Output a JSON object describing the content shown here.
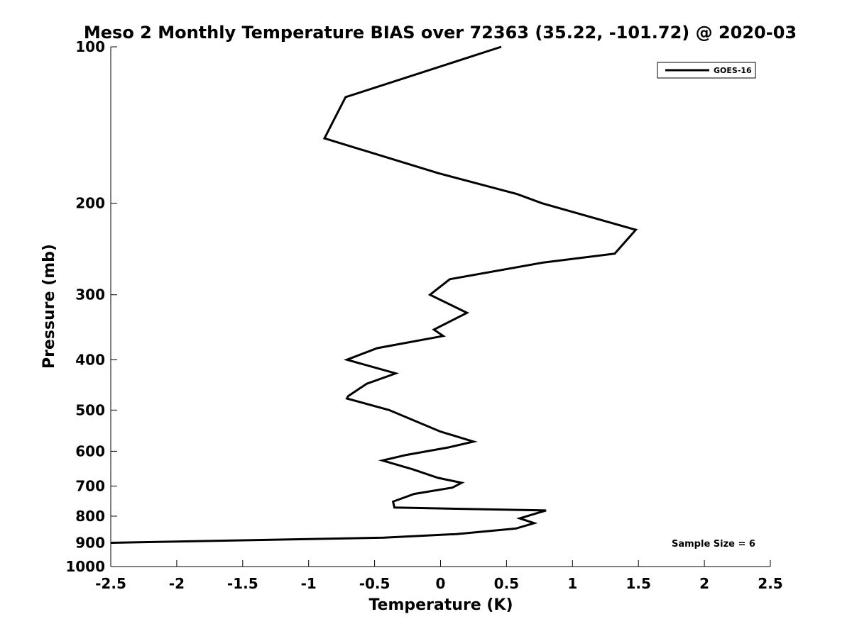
{
  "chart_data": {
    "type": "line",
    "title": "Meso 2 Monthly Temperature BIAS over 72363 (35.22, -101.72) @ 2020-03",
    "xlabel": "Temperature (K)",
    "ylabel": "Pressure (mb)",
    "xlim": [
      -2.5,
      2.5
    ],
    "ylim": [
      100,
      1000
    ],
    "y_scale": "log",
    "y_reversed": true,
    "x_ticks": [
      "-2.5",
      "-2",
      "-1.5",
      "-1",
      "-0.5",
      "0",
      "0.5",
      "1",
      "1.5",
      "2",
      "2.5"
    ],
    "y_ticks": [
      "100",
      "200",
      "300",
      "400",
      "500",
      "600",
      "700",
      "800",
      "900",
      "1000"
    ],
    "grid": false,
    "legend_position": "top-right",
    "series": [
      {
        "name": "GOES-16",
        "color": "#000000",
        "points": [
          {
            "x": 0.46,
            "y": 100
          },
          {
            "x": -0.72,
            "y": 125
          },
          {
            "x": -0.88,
            "y": 150
          },
          {
            "x": -0.02,
            "y": 175
          },
          {
            "x": 0.58,
            "y": 192
          },
          {
            "x": 0.77,
            "y": 200
          },
          {
            "x": 1.48,
            "y": 225
          },
          {
            "x": 1.32,
            "y": 250
          },
          {
            "x": 0.78,
            "y": 260
          },
          {
            "x": 0.07,
            "y": 280
          },
          {
            "x": -0.08,
            "y": 300
          },
          {
            "x": 0.2,
            "y": 325
          },
          {
            "x": -0.05,
            "y": 350
          },
          {
            "x": 0.02,
            "y": 360
          },
          {
            "x": -0.48,
            "y": 380
          },
          {
            "x": -0.71,
            "y": 400
          },
          {
            "x": -0.34,
            "y": 425
          },
          {
            "x": -0.56,
            "y": 445
          },
          {
            "x": -0.7,
            "y": 470
          },
          {
            "x": -0.71,
            "y": 475
          },
          {
            "x": -0.39,
            "y": 500
          },
          {
            "x": 0.0,
            "y": 550
          },
          {
            "x": 0.25,
            "y": 575
          },
          {
            "x": 0.06,
            "y": 590
          },
          {
            "x": -0.26,
            "y": 610
          },
          {
            "x": -0.44,
            "y": 625
          },
          {
            "x": -0.21,
            "y": 650
          },
          {
            "x": -0.02,
            "y": 675
          },
          {
            "x": 0.16,
            "y": 690
          },
          {
            "x": 0.09,
            "y": 705
          },
          {
            "x": -0.2,
            "y": 725
          },
          {
            "x": -0.36,
            "y": 750
          },
          {
            "x": -0.35,
            "y": 770
          },
          {
            "x": 0.8,
            "y": 780
          },
          {
            "x": 0.6,
            "y": 808
          },
          {
            "x": 0.71,
            "y": 825
          },
          {
            "x": 0.57,
            "y": 845
          },
          {
            "x": 0.12,
            "y": 866
          },
          {
            "x": -0.43,
            "y": 880
          },
          {
            "x": -2.5,
            "y": 900
          }
        ]
      }
    ],
    "annotations": [
      {
        "text": "Sample Size = 6"
      }
    ]
  }
}
